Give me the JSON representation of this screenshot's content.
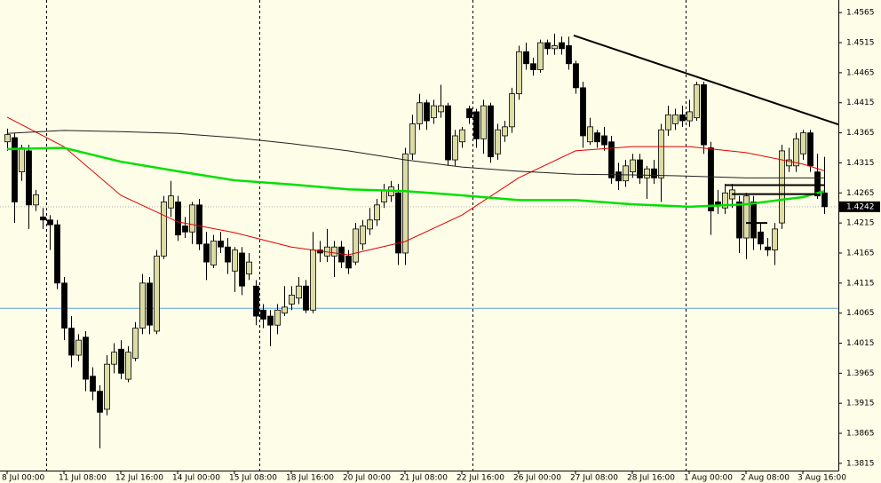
{
  "chart_data": {
    "type": "candlestick",
    "categories": [
      "8 Jul 00:00",
      null,
      null,
      null,
      null,
      null,
      null,
      null,
      "11 Jul 08:00",
      null,
      null,
      null,
      null,
      null,
      null,
      null,
      "12 Jul 16:00",
      null,
      null,
      null,
      null,
      null,
      null,
      null,
      "14 Jul 00:00",
      null,
      null,
      null,
      null,
      null,
      null,
      null,
      "15 Jul 08:00",
      null,
      null,
      null,
      null,
      null,
      null,
      null,
      "18 Jul 16:00",
      null,
      null,
      null,
      null,
      null,
      null,
      null,
      "20 Jul 00:00",
      null,
      null,
      null,
      null,
      null,
      null,
      null,
      "21 Jul 08:00",
      null,
      null,
      null,
      null,
      null,
      null,
      null,
      "22 Jul 16:00",
      null,
      null,
      null,
      null,
      null,
      null,
      null,
      "26 Jul 00:00",
      null,
      null,
      null,
      null,
      null,
      null,
      null,
      "27 Jul 08:00",
      null,
      null,
      null,
      null,
      null,
      null,
      null,
      "28 Jul 16:00",
      null,
      null,
      null,
      null,
      null,
      null,
      null,
      "1 Aug 00:00",
      null,
      null,
      null,
      null,
      null,
      null,
      null,
      "2 Aug 08:00",
      null,
      null,
      null,
      null,
      null,
      null,
      null,
      "3 Aug 16:00",
      null,
      null,
      null
    ],
    "ohlc": [
      [
        1.435,
        1.4372,
        1.4335,
        1.4362
      ],
      [
        1.4357,
        1.4365,
        1.4215,
        1.425
      ],
      [
        1.43,
        1.4345,
        1.4285,
        1.434
      ],
      [
        1.4335,
        1.4345,
        1.4205,
        1.4245
      ],
      [
        1.4245,
        1.427,
        1.4235,
        1.4262
      ],
      [
        1.4225,
        1.424,
        1.4205,
        1.422
      ],
      [
        1.422,
        1.4228,
        1.417,
        1.4212
      ],
      [
        1.4212,
        1.422,
        1.4105,
        1.4115
      ],
      [
        1.4115,
        1.4125,
        1.402,
        1.404
      ],
      [
        1.404,
        1.406,
        1.3975,
        1.3995
      ],
      [
        1.3995,
        1.403,
        1.3985,
        1.402
      ],
      [
        1.4025,
        1.4035,
        1.3935,
        1.3955
      ],
      [
        1.396,
        1.3975,
        1.392,
        1.3935
      ],
      [
        1.3935,
        1.3945,
        1.384,
        1.39
      ],
      [
        1.3905,
        1.3995,
        1.3895,
        1.398
      ],
      [
        1.398,
        1.4015,
        1.3965,
        1.4
      ],
      [
        1.4005,
        1.402,
        1.3955,
        1.3965
      ],
      [
        1.3955,
        1.401,
        1.395,
        1.4
      ],
      [
        1.399,
        1.405,
        1.3985,
        1.404
      ],
      [
        1.404,
        1.413,
        1.403,
        1.4115
      ],
      [
        1.4115,
        1.4125,
        1.403,
        1.4045
      ],
      [
        1.4035,
        1.417,
        1.403,
        1.416
      ],
      [
        1.416,
        1.426,
        1.4155,
        1.425
      ],
      [
        1.424,
        1.4285,
        1.4225,
        1.426
      ],
      [
        1.425,
        1.426,
        1.4185,
        1.4195
      ],
      [
        1.421,
        1.4225,
        1.419,
        1.42
      ],
      [
        1.42,
        1.425,
        1.418,
        1.4245
      ],
      [
        1.4245,
        1.4255,
        1.417,
        1.418
      ],
      [
        1.418,
        1.42,
        1.412,
        1.415
      ],
      [
        1.4145,
        1.4195,
        1.414,
        1.4185
      ],
      [
        1.4185,
        1.42,
        1.4165,
        1.4175
      ],
      [
        1.4175,
        1.419,
        1.413,
        1.415
      ],
      [
        1.4135,
        1.4175,
        1.41,
        1.417
      ],
      [
        1.4165,
        1.4175,
        1.4095,
        1.411
      ],
      [
        1.413,
        1.4165,
        1.412,
        1.415
      ],
      [
        1.411,
        1.412,
        1.4045,
        1.406
      ],
      [
        1.407,
        1.408,
        1.404,
        1.4055
      ],
      [
        1.406,
        1.407,
        1.401,
        1.4045
      ],
      [
        1.4045,
        1.408,
        1.403,
        1.407
      ],
      [
        1.4065,
        1.411,
        1.406,
        1.4075
      ],
      [
        1.408,
        1.411,
        1.407,
        1.4095
      ],
      [
        1.409,
        1.4125,
        1.408,
        1.411
      ],
      [
        1.411,
        1.412,
        1.4065,
        1.407
      ],
      [
        1.407,
        1.42,
        1.4065,
        1.417
      ],
      [
        1.417,
        1.4185,
        1.415,
        1.4165
      ],
      [
        1.416,
        1.4205,
        1.415,
        1.4175
      ],
      [
        1.416,
        1.4185,
        1.4125,
        1.4175
      ],
      [
        1.4175,
        1.4185,
        1.414,
        1.415
      ],
      [
        1.416,
        1.417,
        1.413,
        1.414
      ],
      [
        1.415,
        1.4215,
        1.4145,
        1.4205
      ],
      [
        1.418,
        1.422,
        1.417,
        1.421
      ],
      [
        1.4205,
        1.424,
        1.4195,
        1.422
      ],
      [
        1.422,
        1.4255,
        1.421,
        1.4245
      ],
      [
        1.425,
        1.428,
        1.424,
        1.427
      ],
      [
        1.426,
        1.4285,
        1.425,
        1.4275
      ],
      [
        1.4265,
        1.428,
        1.4145,
        1.4165
      ],
      [
        1.4165,
        1.434,
        1.4145,
        1.433
      ],
      [
        1.433,
        1.4395,
        1.432,
        1.438
      ],
      [
        1.438,
        1.443,
        1.437,
        1.4415
      ],
      [
        1.4415,
        1.442,
        1.437,
        1.4385
      ],
      [
        1.439,
        1.442,
        1.438,
        1.441
      ],
      [
        1.44,
        1.4445,
        1.439,
        1.441
      ],
      [
        1.441,
        1.4415,
        1.431,
        1.432
      ],
      [
        1.432,
        1.437,
        1.431,
        1.436
      ],
      [
        1.435,
        1.4375,
        1.434,
        1.437
      ],
      [
        1.4405,
        1.441,
        1.438,
        1.439
      ],
      [
        1.44,
        1.4405,
        1.434,
        1.4355
      ],
      [
        1.4355,
        1.442,
        1.433,
        1.441
      ],
      [
        1.441,
        1.4415,
        1.4315,
        1.4325
      ],
      [
        1.433,
        1.438,
        1.432,
        1.437
      ],
      [
        1.436,
        1.4385,
        1.435,
        1.4375
      ],
      [
        1.4375,
        1.444,
        1.4365,
        1.443
      ],
      [
        1.443,
        1.451,
        1.442,
        1.45
      ],
      [
        1.45,
        1.4515,
        1.447,
        1.448
      ],
      [
        1.448,
        1.449,
        1.446,
        1.447
      ],
      [
        1.447,
        1.452,
        1.4465,
        1.4515
      ],
      [
        1.4515,
        1.452,
        1.4495,
        1.4505
      ],
      [
        1.4505,
        1.453,
        1.4495,
        1.451
      ],
      [
        1.4515,
        1.4525,
        1.4495,
        1.4505
      ],
      [
        1.451,
        1.4525,
        1.447,
        1.448
      ],
      [
        1.448,
        1.4485,
        1.443,
        1.444
      ],
      [
        1.444,
        1.445,
        1.434,
        1.436
      ],
      [
        1.435,
        1.439,
        1.4345,
        1.4375
      ],
      [
        1.4365,
        1.437,
        1.434,
        1.435
      ],
      [
        1.436,
        1.4375,
        1.4335,
        1.4345
      ],
      [
        1.435,
        1.436,
        1.428,
        1.429
      ],
      [
        1.43,
        1.4315,
        1.427,
        1.4285
      ],
      [
        1.4285,
        1.432,
        1.4275,
        1.431
      ],
      [
        1.43,
        1.433,
        1.429,
        1.432
      ],
      [
        1.432,
        1.433,
        1.428,
        1.429
      ],
      [
        1.429,
        1.431,
        1.4255,
        1.4305
      ],
      [
        1.4305,
        1.432,
        1.428,
        1.429
      ],
      [
        1.429,
        1.438,
        1.425,
        1.437
      ],
      [
        1.437,
        1.441,
        1.436,
        1.4395
      ],
      [
        1.438,
        1.4405,
        1.437,
        1.4395
      ],
      [
        1.4395,
        1.441,
        1.4375,
        1.4385
      ],
      [
        1.4385,
        1.442,
        1.4375,
        1.44
      ],
      [
        1.439,
        1.445,
        1.4385,
        1.4445
      ],
      [
        1.4445,
        1.445,
        1.433,
        1.4345
      ],
      [
        1.434,
        1.435,
        1.4195,
        1.4235
      ],
      [
        1.425,
        1.427,
        1.423,
        1.4245
      ],
      [
        1.424,
        1.428,
        1.423,
        1.4265
      ],
      [
        1.4255,
        1.428,
        1.424,
        1.427
      ],
      [
        1.425,
        1.426,
        1.4165,
        1.419
      ],
      [
        1.419,
        1.4265,
        1.4155,
        1.426
      ],
      [
        1.425,
        1.426,
        1.417,
        1.419
      ],
      [
        1.42,
        1.4215,
        1.417,
        1.418
      ],
      [
        1.4175,
        1.419,
        1.416,
        1.417
      ],
      [
        1.417,
        1.4215,
        1.4145,
        1.4205
      ],
      [
        1.4215,
        1.4345,
        1.4205,
        1.4335
      ],
      [
        1.431,
        1.434,
        1.43,
        1.432
      ],
      [
        1.431,
        1.4365,
        1.43,
        1.4355
      ],
      [
        1.433,
        1.437,
        1.432,
        1.4365
      ],
      [
        1.4365,
        1.437,
        1.43,
        1.431
      ],
      [
        1.43,
        1.433,
        1.4255,
        1.426
      ],
      [
        1.4265,
        1.4325,
        1.423,
        1.4242
      ]
    ],
    "bull_color": "#dcdca4",
    "bear_color": "#000000",
    "series": [
      {
        "color": "#e00000",
        "x": [
          0,
          8,
          16,
          24,
          32,
          40,
          48,
          56,
          64,
          72,
          80,
          88,
          96,
          104,
          112,
          115
        ],
        "values": [
          1.4391,
          1.4342,
          1.4261,
          1.4217,
          1.4199,
          1.4175,
          1.4162,
          1.4184,
          1.4228,
          1.429,
          1.4335,
          1.4342,
          1.4342,
          1.4332,
          1.4313,
          1.4302
        ]
      },
      {
        "color": "#00e000",
        "x": [
          0,
          8,
          16,
          24,
          32,
          40,
          48,
          56,
          64,
          72,
          80,
          88,
          96,
          104,
          112,
          115
        ],
        "values": [
          1.4338,
          1.434,
          1.4317,
          1.4301,
          1.4286,
          1.4279,
          1.4271,
          1.4268,
          1.4261,
          1.4253,
          1.4253,
          1.4246,
          1.4242,
          1.4246,
          1.4258,
          1.4268
        ]
      },
      {
        "color": "#202020",
        "x": [
          0,
          8,
          16,
          24,
          32,
          40,
          48,
          56,
          64,
          72,
          80,
          88,
          96,
          104,
          112,
          115
        ],
        "values": [
          1.4364,
          1.4369,
          1.4367,
          1.4364,
          1.4357,
          1.4347,
          1.4335,
          1.432,
          1.4308,
          1.4301,
          1.4296,
          1.4295,
          1.4293,
          1.429,
          1.429,
          1.429
        ]
      }
    ],
    "trendline": {
      "x": [
        79.75,
        123
      ],
      "values": [
        1.4527,
        1.4355
      ]
    },
    "levels": [
      {
        "x": [
          101,
          115
        ],
        "value": 1.4278
      },
      {
        "x": [
          102,
          114
        ],
        "value": 1.4263
      },
      {
        "x": [
          104,
          107
        ],
        "value": 1.4215
      }
    ],
    "hline": {
      "value": 1.4073,
      "color": "#5aa0e0"
    },
    "current_price": 1.4242,
    "ylim": [
      1.3803,
      1.4586
    ],
    "yticks": [
      1.4565,
      1.4515,
      1.4465,
      1.4415,
      1.4365,
      1.4315,
      1.4265,
      1.4215,
      1.4165,
      1.4115,
      1.4065,
      1.4015,
      1.3965,
      1.3915,
      1.3865,
      1.3815
    ]
  }
}
